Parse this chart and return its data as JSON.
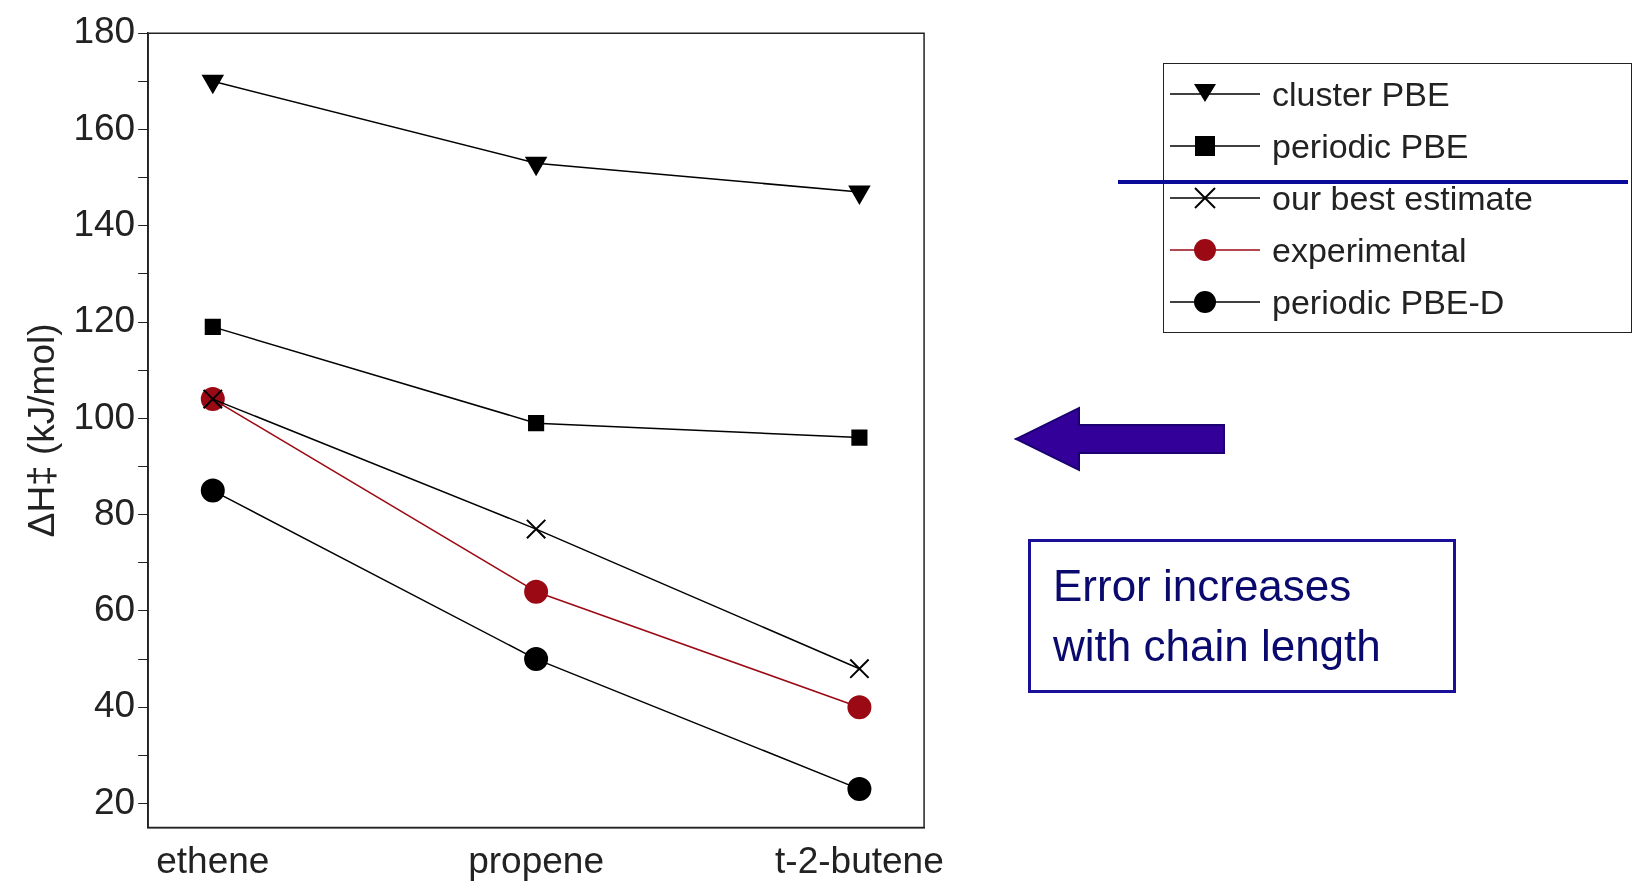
{
  "chart_data": {
    "type": "line",
    "ylabel": "ΔH‡ (kJ/mol)",
    "categories": [
      "ethene",
      "propene",
      "t-2-butene"
    ],
    "series": [
      {
        "name": "cluster PBE",
        "color": "#000000",
        "marker": "triangle",
        "values": [
          170,
          153,
          147
        ]
      },
      {
        "name": "periodic PBE",
        "color": "#000000",
        "marker": "square",
        "values": [
          119,
          99,
          96
        ]
      },
      {
        "name": "our best estimate",
        "color": "#000000",
        "marker": "cross",
        "values": [
          104,
          77,
          48
        ]
      },
      {
        "name": "experimental",
        "color": "#9b0a14",
        "marker": "circle",
        "values": [
          104,
          64,
          40
        ]
      },
      {
        "name": "periodic PBE-D",
        "color": "#000000",
        "marker": "circle",
        "values": [
          85,
          50,
          23
        ]
      }
    ],
    "ylim": [
      15,
      180
    ],
    "yticks": [
      20,
      {
        "value": 30,
        "label": null
      },
      40,
      {
        "value": 50,
        "label": null
      },
      60,
      {
        "value": 70,
        "label": null
      },
      80,
      {
        "value": 90,
        "label": null
      },
      100,
      {
        "value": 110,
        "label": null
      },
      120,
      {
        "value": 130,
        "label": null
      },
      140,
      {
        "value": 150,
        "label": null
      },
      160,
      {
        "value": 170,
        "label": null
      },
      180
    ],
    "grid": false,
    "legend": "top right",
    "line_style": "solid",
    "annotations": [
      "Error increases with chain length"
    ]
  }
}
